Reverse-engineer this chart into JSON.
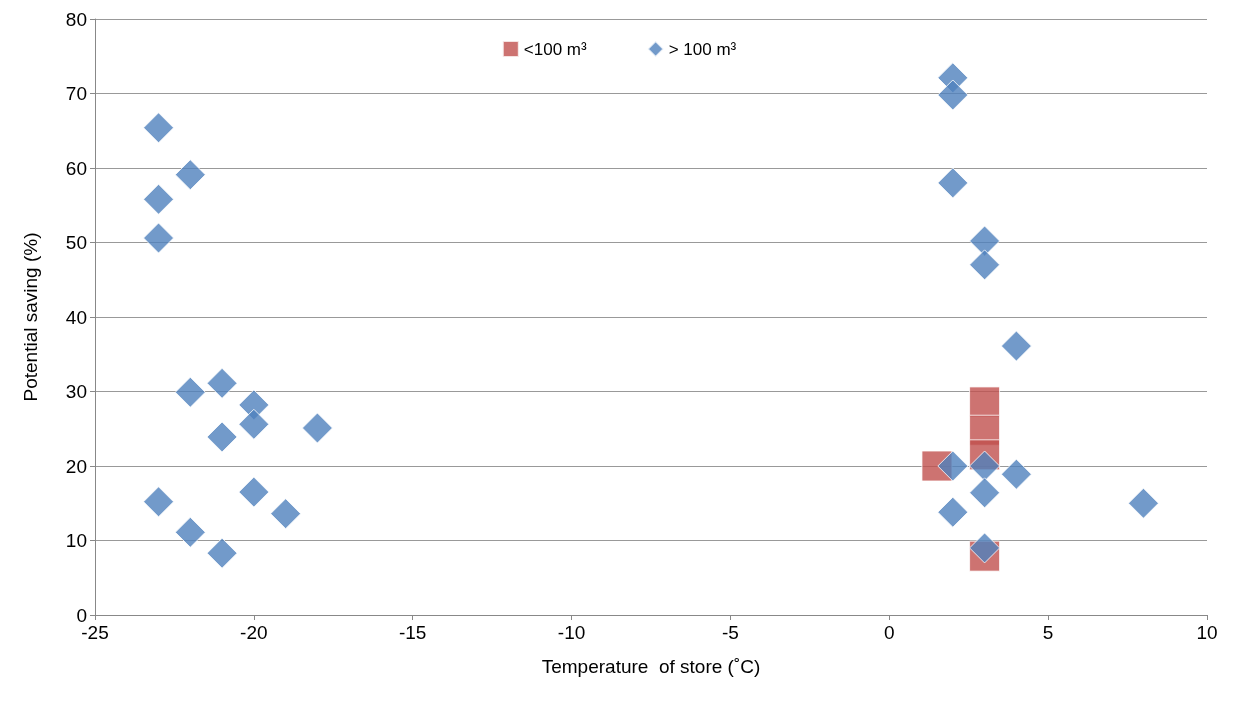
{
  "chart_data": {
    "type": "scatter",
    "xlabel": "Temperature  of store (˚C)",
    "ylabel": "Potential saving (%)",
    "xlim": [
      -25,
      10
    ],
    "xticks": [
      -25,
      -20,
      -15,
      -10,
      -5,
      0,
      5,
      10
    ],
    "ylim": [
      0,
      80
    ],
    "yticks": [
      0,
      10,
      20,
      30,
      40,
      50,
      60,
      70,
      80
    ],
    "grid": "y",
    "legend": "top",
    "series": [
      {
        "name": "<100 m³",
        "color": "#c0504d",
        "marker": "square",
        "x": [
          1.5,
          3,
          3,
          3,
          3
        ],
        "values": [
          20,
          28.6,
          24.8,
          21.5,
          7.9
        ]
      },
      {
        "name": "> 100 m³",
        "color": "#4f81bd",
        "marker": "diamond",
        "x": [
          -23,
          -23,
          -23,
          -23,
          -22,
          -22,
          -22,
          -21,
          -21,
          -21,
          -20,
          -20,
          -20,
          -19,
          -18,
          2,
          2,
          2,
          2,
          2,
          3,
          3,
          3,
          3,
          3,
          4,
          4,
          8
        ],
        "values": [
          65.4,
          55.8,
          50.6,
          15.2,
          59.1,
          29.9,
          11.1,
          31.1,
          23.9,
          8.3,
          28.2,
          25.6,
          16.5,
          13.6,
          25.1,
          72.1,
          69.8,
          58,
          20,
          13.8,
          50.2,
          47,
          20,
          16.4,
          9,
          36.1,
          18.9,
          15
        ]
      }
    ]
  }
}
